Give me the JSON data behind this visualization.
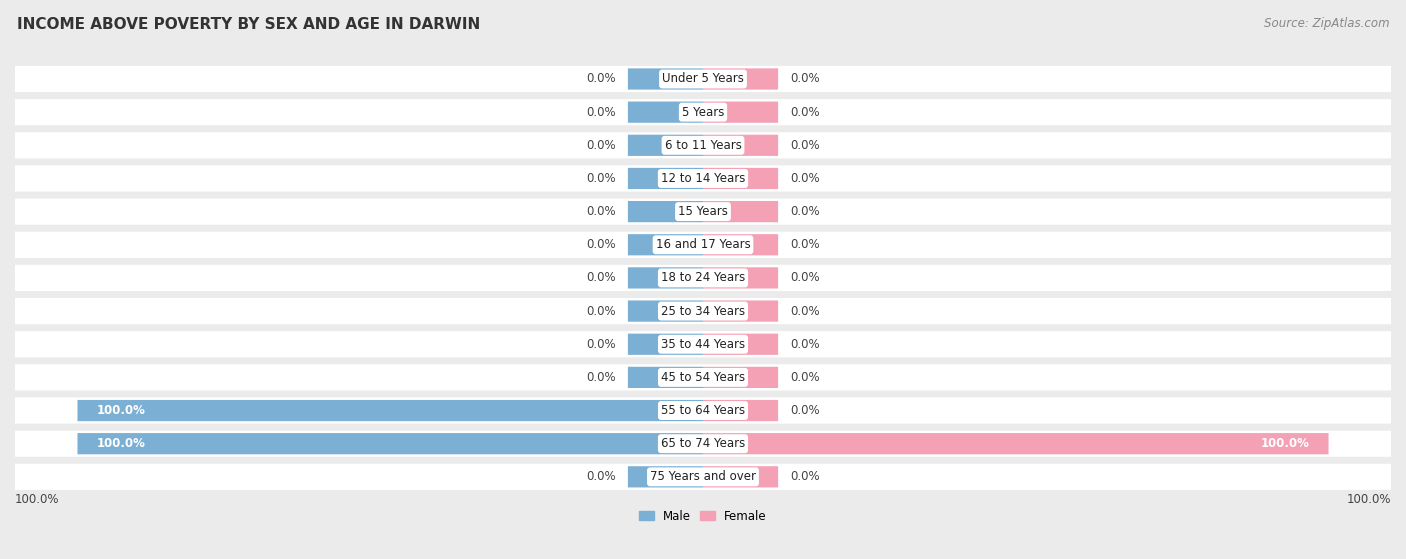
{
  "title": "INCOME ABOVE POVERTY BY SEX AND AGE IN DARWIN",
  "source": "Source: ZipAtlas.com",
  "categories": [
    "Under 5 Years",
    "5 Years",
    "6 to 11 Years",
    "12 to 14 Years",
    "15 Years",
    "16 and 17 Years",
    "18 to 24 Years",
    "25 to 34 Years",
    "35 to 44 Years",
    "45 to 54 Years",
    "55 to 64 Years",
    "65 to 74 Years",
    "75 Years and over"
  ],
  "male_values": [
    0.0,
    0.0,
    0.0,
    0.0,
    0.0,
    0.0,
    0.0,
    0.0,
    0.0,
    0.0,
    100.0,
    100.0,
    0.0
  ],
  "female_values": [
    0.0,
    0.0,
    0.0,
    0.0,
    0.0,
    0.0,
    0.0,
    0.0,
    0.0,
    0.0,
    0.0,
    100.0,
    0.0
  ],
  "male_color": "#7bafd4",
  "female_color": "#f4a0b5",
  "male_label": "Male",
  "female_label": "Female",
  "background_color": "#ebebeb",
  "bar_bg_color": "#ffffff",
  "title_fontsize": 11,
  "source_fontsize": 8.5,
  "label_fontsize": 8.5,
  "cat_fontsize": 8.5,
  "bar_height": 0.62,
  "stub": 12.0,
  "xlim": 110
}
